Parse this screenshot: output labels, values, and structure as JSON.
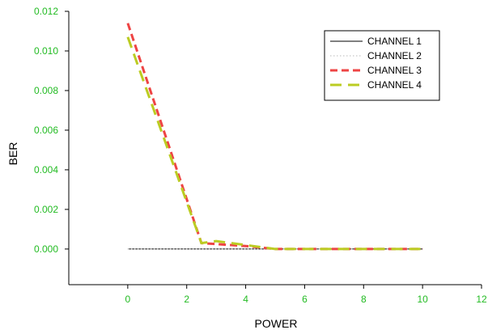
{
  "chart_data": {
    "type": "line",
    "title": "",
    "xlabel": "POWER",
    "ylabel": "BER",
    "xlim": [
      -2,
      12
    ],
    "ylim": [
      -0.0018,
      0.012
    ],
    "xticks": [
      0,
      2,
      4,
      6,
      8,
      10,
      12
    ],
    "xtick_labels": [
      "0",
      "2",
      "4",
      "6",
      "8",
      "10",
      "12"
    ],
    "yticks": [
      0.0,
      0.002,
      0.004,
      0.006,
      0.008,
      0.01,
      0.012
    ],
    "ytick_labels": [
      "0.000",
      "0.002",
      "0.004",
      "0.006",
      "0.008",
      "0.010",
      "0.012"
    ],
    "tick_label_color": "#22bb22",
    "grid": false,
    "legend_position": "top-right",
    "series": [
      {
        "name": "CHANNEL 1",
        "color": "#000000",
        "dash": "solid",
        "x": [
          0,
          2.7,
          4,
          5,
          6,
          8,
          10
        ],
        "y": [
          0.0,
          0.0,
          0.0,
          0.0,
          0.0,
          0.0,
          0.0
        ]
      },
      {
        "name": "CHANNEL 2",
        "color": "#c8c8c8",
        "dash": "dotted",
        "x": [
          0,
          2.7,
          4,
          5,
          6,
          8,
          10
        ],
        "y": [
          0.0,
          0.0,
          0.0,
          0.0,
          0.0,
          0.0,
          0.0
        ]
      },
      {
        "name": "CHANNEL 3",
        "color": "#ee4444",
        "dash": "dashed",
        "x": [
          0,
          2.5,
          4,
          5,
          6,
          8,
          10
        ],
        "y": [
          0.0114,
          0.0003,
          0.00015,
          0.0,
          0.0,
          0.0,
          0.0
        ]
      },
      {
        "name": "CHANNEL 4",
        "color": "#bbcc22",
        "dash": "long-dash",
        "x": [
          0,
          2.5,
          3,
          4,
          5,
          6,
          8,
          10
        ],
        "y": [
          0.0107,
          0.0003,
          0.0004,
          0.0002,
          0.0,
          0.0,
          0.0,
          0.0
        ]
      }
    ]
  }
}
